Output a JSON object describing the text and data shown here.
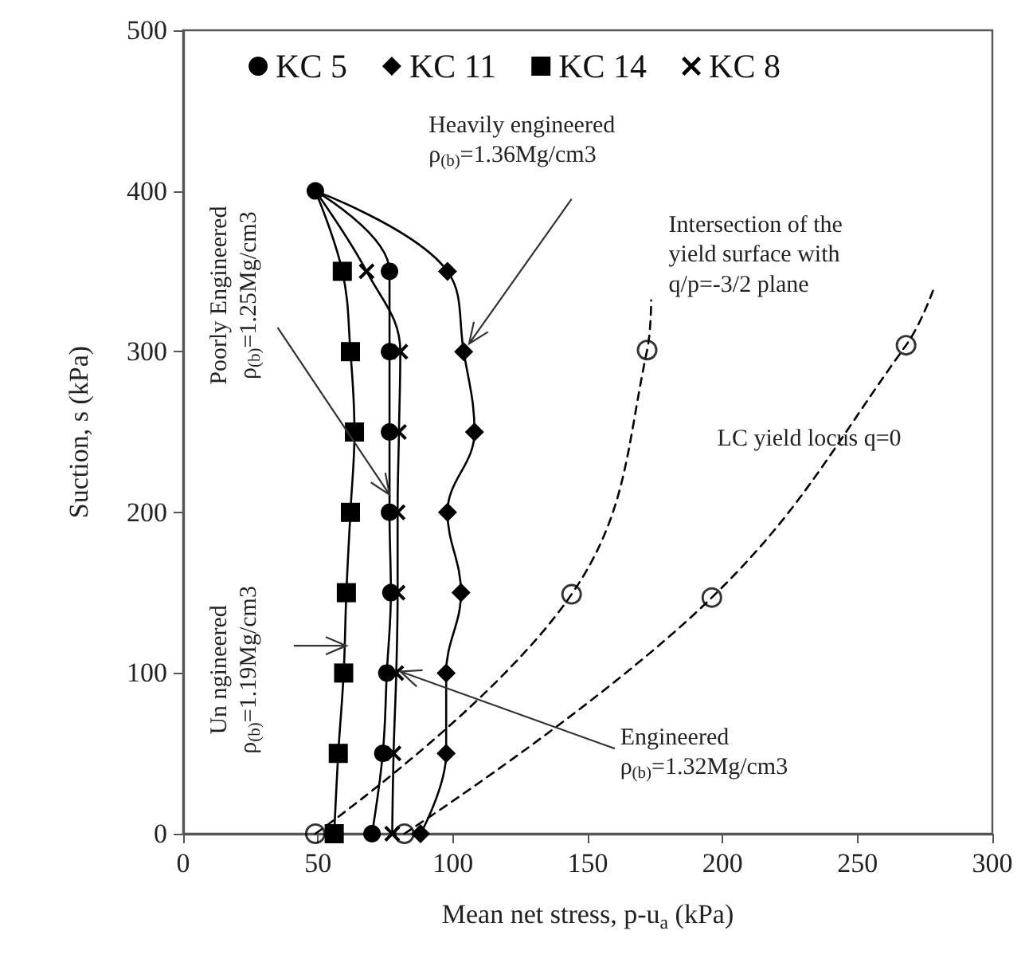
{
  "chart_data": {
    "type": "line",
    "xlabel": "Mean net stress, p-u$_{a}$ (kPa)",
    "ylabel": "Suction, s (kPa)",
    "xlim": [
      0,
      300
    ],
    "xticks": [
      0,
      50,
      100,
      150,
      200,
      250,
      300
    ],
    "ylim": [
      0,
      500
    ],
    "yticks": [
      0,
      100,
      200,
      300,
      400,
      500
    ],
    "grid": false,
    "legend": "top",
    "series": [
      {
        "name": "KC 5",
        "color": "#000000",
        "marker": "circle",
        "line_style": "solid",
        "x": [
          49,
          76.5,
          76.5,
          76.5,
          76.5,
          77,
          75.5,
          74,
          70
        ],
        "values": [
          400,
          350,
          300,
          250,
          200,
          150,
          100,
          50,
          0
        ]
      },
      {
        "name": "KC 11",
        "color": "#000000",
        "marker": "diamond",
        "line_style": "solid",
        "x": [
          49,
          98,
          104,
          108,
          98,
          103,
          97.5,
          97.5,
          88
        ],
        "values": [
          400,
          350,
          300,
          250,
          200,
          150,
          100,
          50,
          0
        ]
      },
      {
        "name": "KC 14",
        "color": "#000000",
        "marker": "square",
        "line_style": "solid",
        "x": [
          49,
          59,
          62,
          63.5,
          62,
          60.5,
          59.5,
          57.5,
          56
        ],
        "values": [
          400,
          350,
          300,
          250,
          200,
          150,
          100,
          50,
          0
        ]
      },
      {
        "name": "KC 8",
        "color": "#000000",
        "marker": "cross",
        "line_style": "solid",
        "x": [
          49,
          68,
          80.5,
          80,
          79.5,
          79.5,
          79,
          78,
          77.5
        ],
        "values": [
          400,
          350,
          300,
          250,
          200,
          150,
          100,
          50,
          0
        ]
      },
      {
        "type": "line",
        "color": "#000000",
        "marker": "none",
        "line_style": "dashed",
        "x": [
          49,
          144,
          172,
          173.5
        ],
        "values": [
          0,
          149,
          301,
          332
        ]
      },
      {
        "type": "line",
        "color": "#000000",
        "marker": "none",
        "line_style": "dashed",
        "x": [
          82,
          196,
          268,
          278
        ],
        "values": [
          0,
          147,
          304,
          338
        ]
      },
      {
        "type": "scatter",
        "color": "#000000",
        "marker": "circle",
        "x": [
          49,
          144,
          172,
          82,
          196,
          268
        ],
        "values": [
          0,
          149,
          301,
          0,
          147,
          304
        ]
      }
    ],
    "annotations": [
      {
        "text": "Heavily engineered\nρ$_{(b)}$=1.36Mg/cm3",
        "x": 106,
        "y": 305
      },
      {
        "text": "Poorly Engineered\nρ$_{(b)}$=1.25Mg/cm3",
        "x": 76.5,
        "y": 211
      },
      {
        "text": "Un ngineered\nρ$_{(b)}$=1.19Mg/cm3",
        "x": 60.5,
        "y": 117
      },
      {
        "text": "Engineered\nρ$_{(b)}$=1.32Mg/cm3",
        "x": 80.5,
        "y": 101
      },
      "Intersection of the\nyield surface with\nq/p=-3/2 plane",
      "LC yield locus q=0"
    ]
  }
}
